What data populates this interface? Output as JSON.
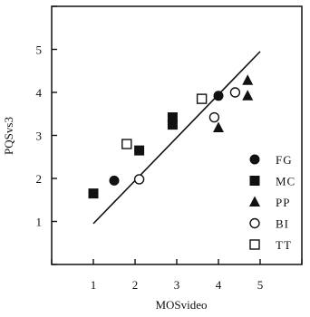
{
  "chart_data": {
    "type": "scatter",
    "xlabel": "MOSvideo",
    "ylabel": "PQSvs3",
    "xlim": [
      0,
      6
    ],
    "ylim": [
      0,
      6
    ],
    "x_ticks": [
      "1",
      "2",
      "3",
      "4",
      "5"
    ],
    "y_ticks": [
      "1",
      "2",
      "3",
      "4",
      "5"
    ],
    "grid": false,
    "legend_position": "bottom-right",
    "series": [
      {
        "name": "FG",
        "marker": "filled-circle",
        "points": [
          [
            1.5,
            1.95
          ],
          [
            4.0,
            3.92
          ]
        ]
      },
      {
        "name": "MC",
        "marker": "filled-square",
        "points": [
          [
            1.0,
            1.65
          ],
          [
            2.1,
            2.65
          ],
          [
            2.9,
            3.25
          ],
          [
            2.9,
            3.42
          ]
        ]
      },
      {
        "name": "PP",
        "marker": "filled-triangle",
        "points": [
          [
            4.0,
            3.18
          ],
          [
            4.7,
            3.92
          ],
          [
            4.7,
            4.28
          ]
        ]
      },
      {
        "name": "BI",
        "marker": "open-circle",
        "points": [
          [
            2.1,
            1.98
          ],
          [
            3.9,
            3.42
          ],
          [
            4.4,
            4.0
          ]
        ]
      },
      {
        "name": "TT",
        "marker": "open-square",
        "points": [
          [
            1.8,
            2.8
          ],
          [
            3.6,
            3.85
          ]
        ]
      }
    ],
    "fit_line": {
      "from": [
        1.0,
        0.95
      ],
      "to": [
        5.0,
        4.95
      ]
    },
    "colors": {
      "ink": "#111111",
      "background": "#ffffff"
    }
  }
}
